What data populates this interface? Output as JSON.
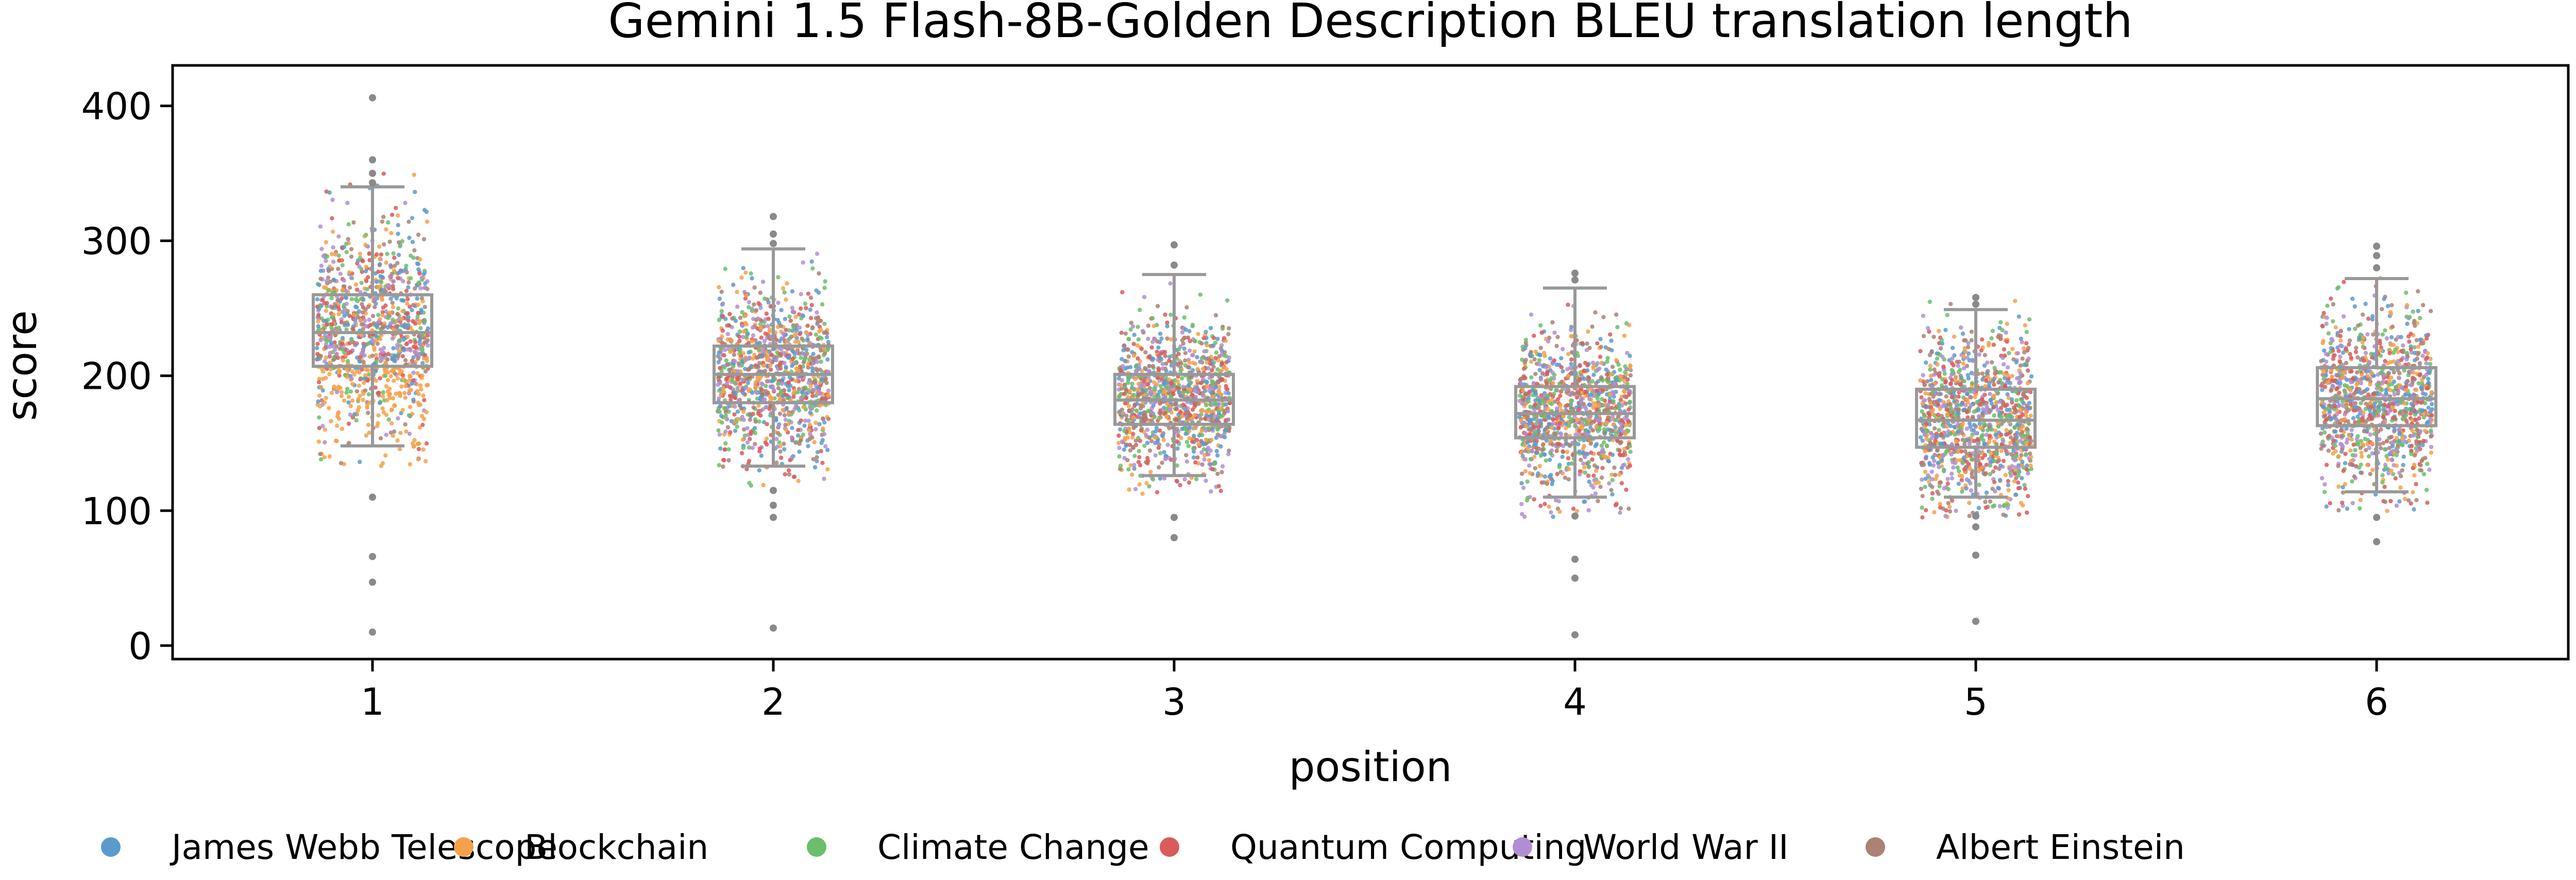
{
  "chart_data": {
    "type": "box-strip",
    "title": "Gemini 1.5 Flash-8B-Golden Description BLEU translation length",
    "xlabel": "position",
    "ylabel": "score",
    "categories": [
      "1",
      "2",
      "3",
      "4",
      "5",
      "6"
    ],
    "ylim": [
      -10,
      430
    ],
    "yticks": [
      0,
      100,
      200,
      300,
      400
    ],
    "grid": false,
    "legend_placement": "bottom",
    "box_color": "#999999",
    "boxes": [
      {
        "position": "1",
        "q1": 207,
        "median": 232,
        "q3": 260,
        "whisker_low": 148,
        "whisker_high": 340,
        "outliers": [
          10,
          47,
          66,
          110,
          343,
          350,
          360,
          406
        ]
      },
      {
        "position": "2",
        "q1": 180,
        "median": 201,
        "q3": 222,
        "whisker_low": 133,
        "whisker_high": 294,
        "outliers": [
          13,
          95,
          104,
          115,
          298,
          305,
          318
        ]
      },
      {
        "position": "3",
        "q1": 164,
        "median": 182,
        "q3": 201,
        "whisker_low": 126,
        "whisker_high": 275,
        "outliers": [
          80,
          95,
          282,
          297
        ]
      },
      {
        "position": "4",
        "q1": 154,
        "median": 172,
        "q3": 192,
        "whisker_low": 110,
        "whisker_high": 265,
        "outliers": [
          8,
          50,
          64,
          96,
          271,
          276
        ]
      },
      {
        "position": "5",
        "q1": 147,
        "median": 167,
        "q3": 190,
        "whisker_low": 110,
        "whisker_high": 249,
        "outliers": [
          18,
          67,
          88,
          96,
          253,
          258
        ]
      },
      {
        "position": "6",
        "q1": 163,
        "median": 183,
        "q3": 206,
        "whisker_low": 114,
        "whisker_high": 272,
        "outliers": [
          77,
          95,
          280,
          289,
          296
        ]
      }
    ],
    "series": [
      {
        "name": "James Webb Telescope",
        "color": "#5B9BCC"
      },
      {
        "name": "Blockchain",
        "color": "#F5A14A"
      },
      {
        "name": "Climate Change",
        "color": "#6BBE6B"
      },
      {
        "name": "Quantum Computing",
        "color": "#D95B5B"
      },
      {
        "name": "World War II",
        "color": "#B08ED3"
      },
      {
        "name": "Albert Einstein",
        "color": "#AC8176"
      }
    ]
  }
}
